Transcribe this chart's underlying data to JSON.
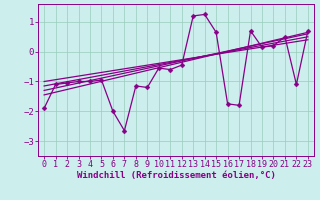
{
  "xlabel": "Windchill (Refroidissement éolien,°C)",
  "xlim": [
    -0.5,
    23.5
  ],
  "ylim": [
    -3.5,
    1.6
  ],
  "yticks": [
    -3,
    -2,
    -1,
    0,
    1
  ],
  "xticks": [
    0,
    1,
    2,
    3,
    4,
    5,
    6,
    7,
    8,
    9,
    10,
    11,
    12,
    13,
    14,
    15,
    16,
    17,
    18,
    19,
    20,
    21,
    22,
    23
  ],
  "bg_color": "#cceeed",
  "line_color": "#880088",
  "grid_color": "#99ccbb",
  "data_y": [
    -1.9,
    -1.1,
    -1.05,
    -1.0,
    -1.0,
    -0.95,
    -2.0,
    -2.65,
    -1.15,
    -1.2,
    -0.55,
    -0.6,
    -0.45,
    1.2,
    1.25,
    0.65,
    -1.75,
    -1.8,
    0.7,
    0.15,
    0.2,
    0.5,
    -1.1,
    0.7
  ],
  "reg_lines": [
    {
      "x0": 0,
      "y0": -1.45,
      "x1": 23,
      "y1": 0.65
    },
    {
      "x0": 0,
      "y0": -1.3,
      "x1": 23,
      "y1": 0.6
    },
    {
      "x0": 0,
      "y0": -1.15,
      "x1": 23,
      "y1": 0.5
    },
    {
      "x0": 0,
      "y0": -1.0,
      "x1": 23,
      "y1": 0.4
    }
  ],
  "xlabel_fontsize": 6.5,
  "tick_fontsize": 6,
  "marker_size": 2.5,
  "line_width": 0.9
}
